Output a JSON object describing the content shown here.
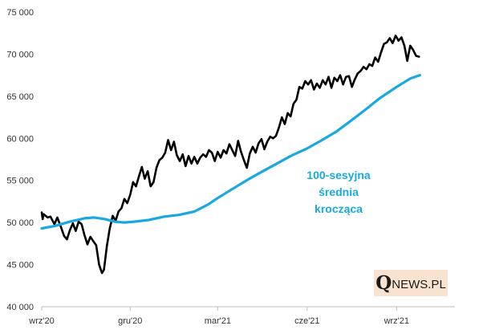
{
  "chart_data": {
    "type": "line",
    "title": "",
    "xlabel": "",
    "ylabel": "",
    "ylim": [
      40000,
      75000
    ],
    "yticks": [
      40000,
      45000,
      50000,
      55000,
      60000,
      65000,
      70000,
      75000
    ],
    "ytick_labels": [
      "40 000",
      "45 000",
      "50 000",
      "55 000",
      "60 000",
      "65 000",
      "70 000",
      "75 000"
    ],
    "x_range": [
      "2020-09-01",
      "2021-10-31"
    ],
    "xticks": [
      {
        "date": "2020-09-01",
        "label": "wrz'20"
      },
      {
        "date": "2020-12-01",
        "label": "gru'20"
      },
      {
        "date": "2021-03-01",
        "label": "mar'21"
      },
      {
        "date": "2021-06-01",
        "label": "cze'21"
      },
      {
        "date": "2021-09-01",
        "label": "wrz'21"
      }
    ],
    "grid": false,
    "annotation": {
      "lines": [
        "100-sesyjna",
        "średnia",
        "krocząca"
      ],
      "color": "#19a9e0"
    },
    "series": [
      {
        "name": "",
        "color": "#000000",
        "points": [
          [
            "2020-09-01",
            51200
          ],
          [
            "2020-09-02",
            50400
          ],
          [
            "2020-09-03",
            51000
          ],
          [
            "2020-09-07",
            50600
          ],
          [
            "2020-09-10",
            50700
          ],
          [
            "2020-09-14",
            49800
          ],
          [
            "2020-09-17",
            50600
          ],
          [
            "2020-09-21",
            49400
          ],
          [
            "2020-09-24",
            48400
          ],
          [
            "2020-09-27",
            48000
          ],
          [
            "2020-09-30",
            49100
          ],
          [
            "2020-10-03",
            49900
          ],
          [
            "2020-10-06",
            49000
          ],
          [
            "2020-10-09",
            50100
          ],
          [
            "2020-10-12",
            49800
          ],
          [
            "2020-10-15",
            48500
          ],
          [
            "2020-10-18",
            47400
          ],
          [
            "2020-10-21",
            48300
          ],
          [
            "2020-10-24",
            47800
          ],
          [
            "2020-10-27",
            47300
          ],
          [
            "2020-10-30",
            45000
          ],
          [
            "2020-11-02",
            44000
          ],
          [
            "2020-11-04",
            44400
          ],
          [
            "2020-11-07",
            47200
          ],
          [
            "2020-11-10",
            49300
          ],
          [
            "2020-11-13",
            50800
          ],
          [
            "2020-11-16",
            50200
          ],
          [
            "2020-11-19",
            51300
          ],
          [
            "2020-11-22",
            51700
          ],
          [
            "2020-11-25",
            52800
          ],
          [
            "2020-11-28",
            52300
          ],
          [
            "2020-12-01",
            53300
          ],
          [
            "2020-12-04",
            54800
          ],
          [
            "2020-12-07",
            54300
          ],
          [
            "2020-12-10",
            55500
          ],
          [
            "2020-12-13",
            56600
          ],
          [
            "2020-12-16",
            55200
          ],
          [
            "2020-12-19",
            56100
          ],
          [
            "2020-12-22",
            54300
          ],
          [
            "2020-12-25",
            54800
          ],
          [
            "2020-12-28",
            56500
          ],
          [
            "2020-12-31",
            57400
          ],
          [
            "2021-01-03",
            57700
          ],
          [
            "2021-01-06",
            58300
          ],
          [
            "2021-01-09",
            59800
          ],
          [
            "2021-01-12",
            58600
          ],
          [
            "2021-01-15",
            59600
          ],
          [
            "2021-01-18",
            58000
          ],
          [
            "2021-01-21",
            57300
          ],
          [
            "2021-01-24",
            58100
          ],
          [
            "2021-01-27",
            56700
          ],
          [
            "2021-01-30",
            57900
          ],
          [
            "2021-02-02",
            57000
          ],
          [
            "2021-02-05",
            57800
          ],
          [
            "2021-02-08",
            57000
          ],
          [
            "2021-02-11",
            57700
          ],
          [
            "2021-02-14",
            58100
          ],
          [
            "2021-02-17",
            57800
          ],
          [
            "2021-02-20",
            58600
          ],
          [
            "2021-02-23",
            58300
          ],
          [
            "2021-02-26",
            57300
          ],
          [
            "2021-03-01",
            58400
          ],
          [
            "2021-03-04",
            57700
          ],
          [
            "2021-03-07",
            58600
          ],
          [
            "2021-03-10",
            58200
          ],
          [
            "2021-03-13",
            59300
          ],
          [
            "2021-03-16",
            58600
          ],
          [
            "2021-03-19",
            57900
          ],
          [
            "2021-03-22",
            59700
          ],
          [
            "2021-03-25",
            58400
          ],
          [
            "2021-03-28",
            57400
          ],
          [
            "2021-03-31",
            56500
          ],
          [
            "2021-04-03",
            58200
          ],
          [
            "2021-04-06",
            59000
          ],
          [
            "2021-04-09",
            58300
          ],
          [
            "2021-04-12",
            59400
          ],
          [
            "2021-04-15",
            59900
          ],
          [
            "2021-04-18",
            58700
          ],
          [
            "2021-04-21",
            59600
          ],
          [
            "2021-04-24",
            60200
          ],
          [
            "2021-04-27",
            60000
          ],
          [
            "2021-04-30",
            60300
          ],
          [
            "2021-05-03",
            61300
          ],
          [
            "2021-05-06",
            62500
          ],
          [
            "2021-05-09",
            61700
          ],
          [
            "2021-05-12",
            63000
          ],
          [
            "2021-05-15",
            62600
          ],
          [
            "2021-05-18",
            64100
          ],
          [
            "2021-05-21",
            64600
          ],
          [
            "2021-05-24",
            66100
          ],
          [
            "2021-05-27",
            65900
          ],
          [
            "2021-05-30",
            66800
          ],
          [
            "2021-06-02",
            66400
          ],
          [
            "2021-06-05",
            66900
          ],
          [
            "2021-06-08",
            65800
          ],
          [
            "2021-06-11",
            66500
          ],
          [
            "2021-06-14",
            66000
          ],
          [
            "2021-06-17",
            66900
          ],
          [
            "2021-06-20",
            66400
          ],
          [
            "2021-06-23",
            67300
          ],
          [
            "2021-06-26",
            66000
          ],
          [
            "2021-06-29",
            67200
          ],
          [
            "2021-07-02",
            66800
          ],
          [
            "2021-07-05",
            67500
          ],
          [
            "2021-07-08",
            66400
          ],
          [
            "2021-07-11",
            67300
          ],
          [
            "2021-07-14",
            67400
          ],
          [
            "2021-07-17",
            66100
          ],
          [
            "2021-07-20",
            67000
          ],
          [
            "2021-07-23",
            67700
          ],
          [
            "2021-07-26",
            68000
          ],
          [
            "2021-07-29",
            68500
          ],
          [
            "2021-08-01",
            68200
          ],
          [
            "2021-08-04",
            68800
          ],
          [
            "2021-08-07",
            68600
          ],
          [
            "2021-08-10",
            69600
          ],
          [
            "2021-08-13",
            69100
          ],
          [
            "2021-08-16",
            70200
          ],
          [
            "2021-08-19",
            71200
          ],
          [
            "2021-08-22",
            71400
          ],
          [
            "2021-08-25",
            71900
          ],
          [
            "2021-08-28",
            71300
          ],
          [
            "2021-08-31",
            72200
          ],
          [
            "2021-09-03",
            71600
          ],
          [
            "2021-09-06",
            72000
          ],
          [
            "2021-09-09",
            71000
          ],
          [
            "2021-09-12",
            69200
          ],
          [
            "2021-09-15",
            71000
          ],
          [
            "2021-09-18",
            70500
          ],
          [
            "2021-09-21",
            69800
          ],
          [
            "2021-09-24",
            69700
          ]
        ]
      },
      {
        "name": "100-sesyjna średnia krocząca",
        "color": "#19a9e0",
        "points": [
          [
            "2020-09-01",
            49300
          ],
          [
            "2020-09-15",
            49600
          ],
          [
            "2020-09-30",
            50100
          ],
          [
            "2020-10-15",
            50500
          ],
          [
            "2020-10-25",
            50600
          ],
          [
            "2020-11-05",
            50400
          ],
          [
            "2020-11-15",
            50100
          ],
          [
            "2020-11-25",
            50000
          ],
          [
            "2020-12-05",
            50100
          ],
          [
            "2020-12-20",
            50300
          ],
          [
            "2021-01-05",
            50700
          ],
          [
            "2021-01-20",
            50900
          ],
          [
            "2021-02-05",
            51300
          ],
          [
            "2021-02-20",
            52200
          ],
          [
            "2021-03-01",
            52900
          ],
          [
            "2021-03-15",
            53900
          ],
          [
            "2021-04-01",
            55100
          ],
          [
            "2021-04-15",
            56000
          ],
          [
            "2021-05-01",
            57000
          ],
          [
            "2021-05-15",
            57900
          ],
          [
            "2021-06-01",
            58800
          ],
          [
            "2021-06-15",
            59700
          ],
          [
            "2021-07-01",
            60800
          ],
          [
            "2021-07-15",
            62000
          ],
          [
            "2021-08-01",
            63500
          ],
          [
            "2021-08-15",
            64800
          ],
          [
            "2021-09-01",
            66100
          ],
          [
            "2021-09-15",
            67100
          ],
          [
            "2021-09-25",
            67500
          ]
        ]
      }
    ]
  },
  "logo": {
    "q": "Q",
    "rest": "NEWS.PL"
  }
}
